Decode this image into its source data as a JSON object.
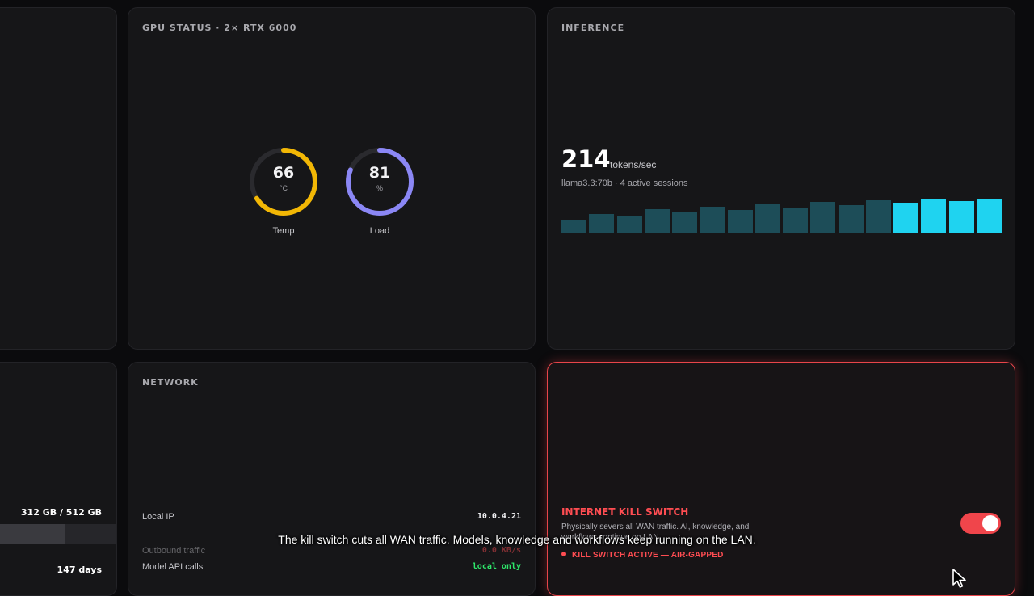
{
  "gpu": {
    "title": "GPU STATUS · 2× RTX 6000",
    "temp": {
      "value": "66",
      "unit": "°C",
      "label": "Temp",
      "fraction": 0.66,
      "color": "#f2b705"
    },
    "load": {
      "value": "81",
      "unit": "%",
      "label": "Load",
      "fraction": 0.81,
      "color": "#8b87f5"
    }
  },
  "inference": {
    "title": "INFERENCE",
    "tokens_per_sec": "214",
    "unit": "tokens/sec",
    "subtitle": "llama3.3:70b · 4 active sessions",
    "bar_levels": [
      0.4,
      0.55,
      0.48,
      0.7,
      0.62,
      0.77,
      0.68,
      0.84,
      0.74,
      0.9,
      0.82,
      0.95,
      0.88,
      0.97,
      0.93,
      1.0
    ],
    "highlight_from_index": 12,
    "bar_color_dim": "#1d4d58",
    "bar_color_active": "#1fd3f0"
  },
  "network": {
    "title": "NETWORK",
    "rows": [
      {
        "key": "Local IP",
        "value": "10.0.4.21",
        "color": "#f2f2f4"
      },
      {
        "key": "Outbound traffic",
        "value": "0.0 KB/s",
        "color": "#ff4d52"
      },
      {
        "key": "Model API calls",
        "value": "local only",
        "color": "#2ee86b"
      }
    ]
  },
  "kill_switch": {
    "title": "INTERNET KILL SWITCH",
    "description": "Physically severs all WAN traffic. AI, knowledge, and workflows continue on LAN.",
    "status": "KILL SWITCH ACTIVE — AIR-GAPPED",
    "enabled": true,
    "accent": "#ff4d52"
  },
  "storage": {
    "usage_text": "312 GB / 512 GB",
    "used_fraction": 0.61
  },
  "uptime": {
    "value": "147 days"
  },
  "caption": "The kill switch cuts all WAN traffic. Models, knowledge and workflows keep running on the LAN."
}
